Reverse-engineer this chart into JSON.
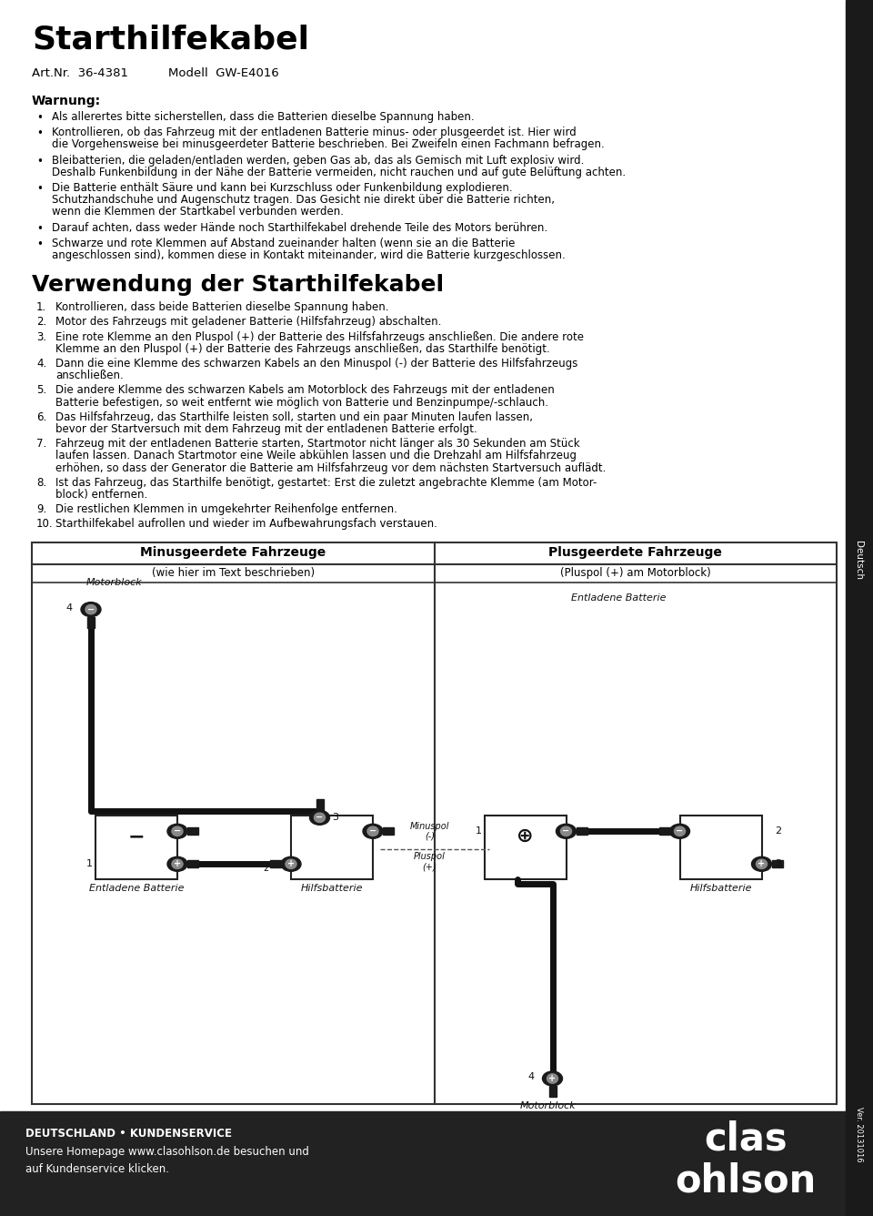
{
  "title": "Starthilfekabel",
  "art_nr": "Art.Nr.  36-4381",
  "modell": "Modell  GW-E4016",
  "warning_title": "Warnung:",
  "warning_bullets": [
    "Als allerertes bitte sicherstellen, dass die Batterien dieselbe Spannung haben.",
    "Kontrollieren, ob das Fahrzeug mit der entladenen Batterie minus- oder plusgeerdet ist. Hier wird\ndie Vorgehensweise bei minusgeerdeter Batterie beschrieben. Bei Zweifeln einen Fachmann befragen.",
    "Bleibatterien, die geladen/entladen werden, geben Gas ab, das als Gemisch mit Luft explosiv wird.\nDeshalb Funkenbildung in der Nähe der Batterie vermeiden, nicht rauchen und auf gute Belüftung achten.",
    "Die Batterie enthält Säure und kann bei Kurzschluss oder Funkenbildung explodieren.\nSchutzhandschuhe und Augenschutz tragen. Das Gesicht nie direkt über die Batterie richten,\nwenn die Klemmen der Startkabel verbunden werden.",
    "Darauf achten, dass weder Hände noch Starthilfekabel drehende Teile des Motors berühren.",
    "Schwarze und rote Klemmen auf Abstand zueinander halten (wenn sie an die Batterie\nangeschlossen sind), kommen diese in Kontakt miteinander, wird die Batterie kurzgeschlossen."
  ],
  "usage_title": "Verwendung der Starthilfekabel",
  "usage_steps": [
    "Kontrollieren, dass beide Batterien dieselbe Spannung haben.",
    "Motor des Fahrzeugs mit geladener Batterie (Hilfsfahrzeug) abschalten.",
    "Eine rote Klemme an den Pluspol (+) der Batterie des Hilfsfahrzeugs anschließen. Die andere rote\nKlemme an den Pluspol (+) der Batterie des Fahrzeugs anschließen, das Starthilfe benötigt.",
    "Dann die eine Klemme des schwarzen Kabels an den Minuspol (-) der Batterie des Hilfsfahrzeugs\nanschließen.",
    "Die andere Klemme des schwarzen Kabels am Motorblock des Fahrzeugs mit der entladenen\nBatterie befestigen, so weit entfernt wie möglich von Batterie und Benzinpumpe/-schlauch.",
    "Das Hilfsfahrzeug, das Starthilfe leisten soll, starten und ein paar Minuten laufen lassen,\nbevor der Startversuch mit dem Fahrzeug mit der entladenen Batterie erfolgt.",
    "Fahrzeug mit der entladenen Batterie starten, Startmotor nicht länger als 30 Sekunden am Stück\nlaufen lassen. Danach Startmotor eine Weile abkühlen lassen und die Drehzahl am Hilfsfahrzeug\nerhöhen, so dass der Generator die Batterie am Hilfsfahrzeug vor dem nächsten Startversuch auflädt.",
    "Ist das Fahrzeug, das Starthilfe benötigt, gestartet: Erst die zuletzt angebrachte Klemme (am Motor-\nblock) entfernen.",
    "Die restlichen Klemmen in umgekehrter Reihenfolge entfernen.",
    "Starthilfekabel aufrollen und wieder im Aufbewahrungsfach verstauen."
  ],
  "footer_left_bold": "DEUTSCHLAND • KUNDENSERVICE",
  "footer_left_normal": "Unsere Homepage www.clasohlson.de besuchen und\nauf Kundenservice klicken.",
  "footer_logo1": "clas",
  "footer_logo2": "ohlson",
  "sidebar_text": "Deutsch",
  "version_text": "Ver. 20131016",
  "diagram_title_left": "Minusgeerdete Fahrzeuge",
  "diagram_subtitle_left": "(wie hier im Text beschrieben)",
  "diagram_title_right": "Plusgeerdete Fahrzeuge",
  "diagram_subtitle_right": "(Pluspol (+) am Motorblock)",
  "bg_color": "#ffffff",
  "text_color": "#000000",
  "footer_bg": "#222222",
  "footer_text_color": "#ffffff",
  "sidebar_bg": "#1a1a1a",
  "title_fontsize": 26,
  "heading2_fontsize": 20,
  "body_fontsize": 8.5
}
